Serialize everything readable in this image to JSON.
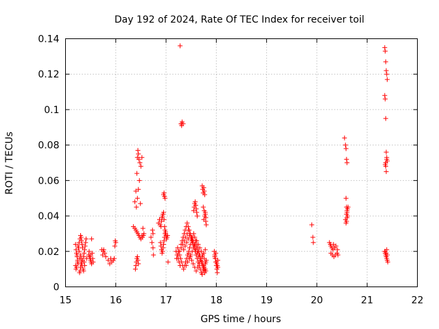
{
  "chart_data": {
    "type": "scatter",
    "title": "Day 192 of 2024, Rate Of TEC Index for receiver toil",
    "xlabel": "GPS time / hours",
    "ylabel": "ROTI / TECUs",
    "xlim": [
      15,
      22
    ],
    "ylim": [
      0,
      0.14
    ],
    "xticks": [
      "15",
      "16",
      "17",
      "18",
      "19",
      "20",
      "21",
      "22"
    ],
    "yticks": [
      "0",
      "0.02",
      "0.04",
      "0.06",
      "0.08",
      "0.1",
      "0.12",
      "0.14"
    ],
    "grid": true,
    "marker": "plus",
    "color": "#ff0000",
    "series": [
      {
        "x": [
          15.2,
          15.21,
          15.22,
          15.23,
          15.24,
          15.25,
          15.22,
          15.23,
          15.26,
          15.27,
          15.28,
          15.2,
          15.21,
          15.24,
          15.25,
          15.27,
          15.29,
          15.3,
          15.31,
          15.32,
          15.33,
          15.34,
          15.3,
          15.31,
          15.32,
          15.33,
          15.35,
          15.36,
          15.28,
          15.29,
          15.3,
          15.31,
          15.34,
          15.36,
          15.37,
          15.38,
          15.39,
          15.4,
          15.41,
          15.37,
          15.38,
          15.42,
          15.46,
          15.48,
          15.49,
          15.5,
          15.51,
          15.52,
          15.53,
          15.47,
          15.5,
          15.52,
          15.54,
          15.55,
          15.72,
          15.75,
          15.78,
          15.74,
          15.76,
          15.8,
          15.85,
          15.88,
          15.9,
          15.92,
          15.95,
          15.97,
          15.98,
          16.0,
          15.99
        ],
        "y": [
          0.024,
          0.021,
          0.019,
          0.017,
          0.015,
          0.013,
          0.011,
          0.018,
          0.022,
          0.02,
          0.016,
          0.012,
          0.01,
          0.014,
          0.023,
          0.025,
          0.027,
          0.029,
          0.028,
          0.026,
          0.024,
          0.022,
          0.018,
          0.016,
          0.014,
          0.012,
          0.01,
          0.009,
          0.008,
          0.009,
          0.011,
          0.013,
          0.015,
          0.017,
          0.019,
          0.021,
          0.023,
          0.025,
          0.027,
          0.014,
          0.012,
          0.016,
          0.018,
          0.017,
          0.016,
          0.015,
          0.014,
          0.013,
          0.019,
          0.02,
          0.018,
          0.027,
          0.016,
          0.014,
          0.021,
          0.02,
          0.019,
          0.018,
          0.021,
          0.017,
          0.015,
          0.013,
          0.016,
          0.014,
          0.015,
          0.016,
          0.023,
          0.025,
          0.026
        ]
      },
      {
        "x": [
          16.35,
          16.38,
          16.4,
          16.42,
          16.43,
          16.44,
          16.45,
          16.46,
          16.48,
          16.5,
          16.52,
          16.41,
          16.43,
          16.45,
          16.47,
          16.49,
          16.39,
          16.4,
          16.41,
          16.42,
          16.43,
          16.44,
          16.45,
          16.38,
          16.4,
          16.42,
          16.44,
          16.46,
          16.48,
          16.5,
          16.52,
          16.54,
          16.56,
          16.53,
          16.55,
          16.7,
          16.72,
          16.74,
          16.75,
          16.73,
          16.74,
          16.85,
          16.87,
          16.88,
          16.9,
          16.91,
          16.92,
          16.93,
          16.94,
          16.95,
          16.96,
          16.97,
          16.98,
          16.99,
          17.0,
          16.89,
          16.9,
          16.91,
          16.92,
          16.93,
          16.94,
          16.95,
          16.96,
          16.97,
          16.98,
          16.99,
          17.0,
          17.01,
          17.02,
          17.03,
          16.95,
          16.97,
          16.96,
          16.98,
          17.04
        ],
        "y": [
          0.034,
          0.048,
          0.054,
          0.064,
          0.073,
          0.077,
          0.075,
          0.072,
          0.07,
          0.068,
          0.073,
          0.045,
          0.05,
          0.055,
          0.06,
          0.047,
          0.01,
          0.012,
          0.014,
          0.016,
          0.017,
          0.015,
          0.013,
          0.033,
          0.032,
          0.031,
          0.03,
          0.029,
          0.028,
          0.027,
          0.029,
          0.033,
          0.03,
          0.028,
          0.029,
          0.028,
          0.025,
          0.022,
          0.018,
          0.032,
          0.03,
          0.036,
          0.038,
          0.035,
          0.034,
          0.037,
          0.039,
          0.04,
          0.041,
          0.042,
          0.038,
          0.034,
          0.032,
          0.03,
          0.029,
          0.025,
          0.023,
          0.021,
          0.019,
          0.02,
          0.022,
          0.024,
          0.026,
          0.028,
          0.03,
          0.031,
          0.029,
          0.027,
          0.028,
          0.029,
          0.052,
          0.051,
          0.053,
          0.05,
          0.014
        ]
      },
      {
        "x": [
          17.28,
          17.3,
          17.32,
          17.34,
          17.31,
          17.3,
          17.2,
          17.22,
          17.24,
          17.26,
          17.28,
          17.3,
          17.32,
          17.34,
          17.36,
          17.38,
          17.4,
          17.42,
          17.44,
          17.46,
          17.48,
          17.5,
          17.52,
          17.54,
          17.56,
          17.58,
          17.6,
          17.62,
          17.64,
          17.66,
          17.68,
          17.7,
          17.72,
          17.74,
          17.76,
          17.78,
          17.8,
          17.23,
          17.25,
          17.27,
          17.29,
          17.31,
          17.33,
          17.35,
          17.37,
          17.39,
          17.41,
          17.43,
          17.45,
          17.47,
          17.49,
          17.51,
          17.53,
          17.55,
          17.57,
          17.59,
          17.61,
          17.63,
          17.65,
          17.67,
          17.69,
          17.71,
          17.73,
          17.75,
          17.77,
          17.79,
          17.21,
          17.24,
          17.27,
          17.3,
          17.33,
          17.36,
          17.39,
          17.42,
          17.45,
          17.48,
          17.51,
          17.54,
          17.57,
          17.6,
          17.63,
          17.66,
          17.69,
          17.72,
          17.75,
          17.78,
          17.35,
          17.38,
          17.41,
          17.44,
          17.47,
          17.5,
          17.53,
          17.56,
          17.59,
          17.62,
          17.65,
          17.68,
          17.71,
          17.74,
          17.77,
          17.4,
          17.43,
          17.46,
          17.49,
          17.52,
          17.55,
          17.58,
          17.61,
          17.64,
          17.67,
          17.7,
          17.73,
          17.76,
          17.79,
          17.45,
          17.48,
          17.51,
          17.54,
          17.57,
          17.6,
          17.63,
          17.66,
          17.69,
          17.72,
          17.75,
          17.78,
          17.55,
          17.56,
          17.57,
          17.58,
          17.59,
          17.6,
          17.61,
          17.62,
          17.72,
          17.73,
          17.74,
          17.75,
          17.76,
          17.77,
          17.74,
          17.76,
          17.78,
          17.79,
          17.75,
          17.77,
          17.78,
          17.79,
          17.8,
          17.96,
          17.97,
          17.98,
          17.99,
          18.0,
          18.01,
          18.02,
          18.03,
          17.97,
          17.99,
          18.01,
          18.03,
          17.98,
          18.0,
          18.02
        ],
        "y": [
          0.136,
          0.092,
          0.093,
          0.092,
          0.091,
          0.092,
          0.02,
          0.018,
          0.016,
          0.014,
          0.012,
          0.024,
          0.026,
          0.028,
          0.03,
          0.032,
          0.034,
          0.036,
          0.034,
          0.032,
          0.03,
          0.028,
          0.026,
          0.024,
          0.022,
          0.02,
          0.018,
          0.016,
          0.014,
          0.012,
          0.01,
          0.008,
          0.007,
          0.009,
          0.011,
          0.013,
          0.015,
          0.022,
          0.02,
          0.018,
          0.016,
          0.014,
          0.012,
          0.01,
          0.012,
          0.014,
          0.016,
          0.018,
          0.02,
          0.022,
          0.024,
          0.026,
          0.028,
          0.03,
          0.028,
          0.026,
          0.024,
          0.022,
          0.02,
          0.018,
          0.016,
          0.014,
          0.012,
          0.01,
          0.008,
          0.009,
          0.016,
          0.018,
          0.02,
          0.022,
          0.024,
          0.026,
          0.028,
          0.03,
          0.032,
          0.03,
          0.028,
          0.026,
          0.024,
          0.022,
          0.02,
          0.018,
          0.016,
          0.014,
          0.012,
          0.01,
          0.021,
          0.023,
          0.025,
          0.027,
          0.029,
          0.027,
          0.025,
          0.023,
          0.021,
          0.019,
          0.017,
          0.015,
          0.013,
          0.011,
          0.009,
          0.012,
          0.014,
          0.016,
          0.018,
          0.02,
          0.022,
          0.024,
          0.026,
          0.024,
          0.022,
          0.02,
          0.018,
          0.016,
          0.014,
          0.019,
          0.017,
          0.015,
          0.013,
          0.011,
          0.009,
          0.011,
          0.013,
          0.015,
          0.017,
          0.019,
          0.021,
          0.043,
          0.045,
          0.047,
          0.048,
          0.046,
          0.044,
          0.042,
          0.04,
          0.057,
          0.055,
          0.053,
          0.056,
          0.054,
          0.052,
          0.045,
          0.043,
          0.041,
          0.039,
          0.038,
          0.04,
          0.042,
          0.037,
          0.035,
          0.02,
          0.018,
          0.016,
          0.014,
          0.012,
          0.01,
          0.008,
          0.015,
          0.017,
          0.019,
          0.013,
          0.011,
          0.016,
          0.014,
          0.012
        ]
      },
      {
        "x": [
          19.9,
          19.92,
          19.93,
          20.25,
          20.27,
          20.28,
          20.3,
          20.32,
          20.33,
          20.35,
          20.28,
          20.31,
          20.34,
          20.37,
          20.4,
          20.42,
          20.38,
          20.41,
          20.55,
          20.57,
          20.58,
          20.59,
          20.6,
          20.58,
          20.59,
          20.6,
          20.61,
          20.57,
          20.58,
          20.59,
          20.6,
          20.61,
          20.62,
          20.59,
          20.6
        ],
        "y": [
          0.035,
          0.028,
          0.025,
          0.025,
          0.024,
          0.023,
          0.022,
          0.021,
          0.024,
          0.022,
          0.019,
          0.018,
          0.017,
          0.018,
          0.019,
          0.018,
          0.023,
          0.021,
          0.084,
          0.08,
          0.078,
          0.072,
          0.07,
          0.05,
          0.045,
          0.042,
          0.04,
          0.038,
          0.036,
          0.041,
          0.043,
          0.044,
          0.045,
          0.037,
          0.039
        ],
        "note": ""
      },
      {
        "x": [
          21.35,
          21.36,
          21.37,
          21.38,
          21.39,
          21.4,
          21.35,
          21.36,
          21.37,
          21.38,
          21.39,
          21.4,
          21.36,
          21.37,
          21.38,
          21.39,
          21.35,
          21.36,
          21.37,
          21.38,
          21.39,
          21.4,
          21.41,
          21.36,
          21.38,
          21.4,
          21.37,
          21.39
        ],
        "y": [
          0.135,
          0.133,
          0.127,
          0.122,
          0.12,
          0.117,
          0.108,
          0.106,
          0.095,
          0.076,
          0.073,
          0.071,
          0.069,
          0.068,
          0.065,
          0.021,
          0.02,
          0.019,
          0.018,
          0.017,
          0.016,
          0.015,
          0.014,
          0.02,
          0.019,
          0.018,
          0.07,
          0.072
        ]
      }
    ]
  }
}
